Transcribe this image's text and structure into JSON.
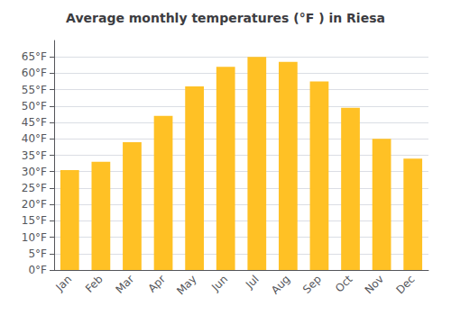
{
  "chart_data": {
    "type": "bar",
    "title": "Average monthly temperatures (°F ) in Riesa",
    "categories": [
      "Jan",
      "Feb",
      "Mar",
      "Apr",
      "May",
      "Jun",
      "Jul",
      "Aug",
      "Sep",
      "Oct",
      "Nov",
      "Dec"
    ],
    "values": [
      30.5,
      33.0,
      39.0,
      47.0,
      56.0,
      62.0,
      65.0,
      63.5,
      57.5,
      49.5,
      40.0,
      34.0
    ],
    "color": "#FFC125",
    "ylim": [
      0,
      70
    ],
    "yticks": [
      {
        "value": 0,
        "label": "0°F"
      },
      {
        "value": 5,
        "label": "5°F"
      },
      {
        "value": 10,
        "label": "10°F"
      },
      {
        "value": 15,
        "label": "15°F"
      },
      {
        "value": 20,
        "label": "20°F"
      },
      {
        "value": 25,
        "label": "25°F"
      },
      {
        "value": 30,
        "label": "30°F"
      },
      {
        "value": 35,
        "label": "35°F"
      },
      {
        "value": 40,
        "label": "40°F"
      },
      {
        "value": 45,
        "label": "45°F"
      },
      {
        "value": 50,
        "label": "50°F"
      },
      {
        "value": 55,
        "label": "55°F"
      },
      {
        "value": 60,
        "label": "60°F"
      },
      {
        "value": 65,
        "label": "65°F"
      }
    ],
    "grid": true
  }
}
